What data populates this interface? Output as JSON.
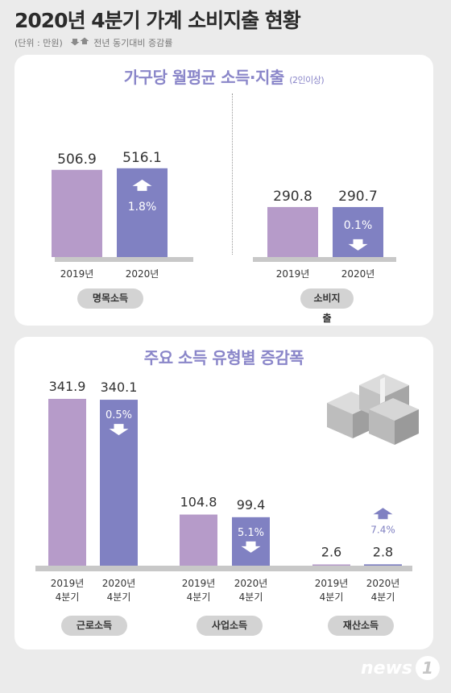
{
  "title": "2020년 4분기 가계 소비지출 현황",
  "unit_note": "(단위 : 만원)",
  "legend_note": "전년 동기대비 증감률",
  "colors": {
    "bar_2019": "#b69bc9",
    "bar_2020": "#8081c2",
    "title_accent": "#8a86c9",
    "baseline": "#c8c8c8"
  },
  "panel1": {
    "title": "가구당 월평균 소득·지출",
    "title_note": "(2인이상)"
  },
  "panel2": {
    "title": "주요 소득 유형별 증감폭"
  },
  "logo": {
    "text": "news",
    "digit": "1"
  },
  "chart_data": [
    {
      "type": "bar",
      "title": "가구당 월평균 소득·지출",
      "subtitle": "(2인이상)",
      "groups": [
        {
          "label": "명목소득",
          "categories": [
            "2019년",
            "2020년"
          ],
          "values": [
            506.9,
            516.1
          ],
          "change": "1.8%",
          "direction": "up"
        },
        {
          "label": "소비지출",
          "categories": [
            "2019년",
            "2020년"
          ],
          "values": [
            290.8,
            290.7
          ],
          "change": "0.1%",
          "direction": "down"
        }
      ]
    },
    {
      "type": "bar",
      "title": "주요 소득 유형별 증감폭",
      "groups": [
        {
          "label": "근로소득",
          "categories": [
            "2019년 4분기",
            "2020년 4분기"
          ],
          "values": [
            341.9,
            340.1
          ],
          "change": "0.5%",
          "direction": "down"
        },
        {
          "label": "사업소득",
          "categories": [
            "2019년 4분기",
            "2020년 4분기"
          ],
          "values": [
            104.8,
            99.4
          ],
          "change": "5.1%",
          "direction": "down"
        },
        {
          "label": "재산소득",
          "categories": [
            "2019년 4분기",
            "2020년 4분기"
          ],
          "values": [
            2.6,
            2.8
          ],
          "change": "7.4%",
          "direction": "up"
        }
      ]
    }
  ]
}
